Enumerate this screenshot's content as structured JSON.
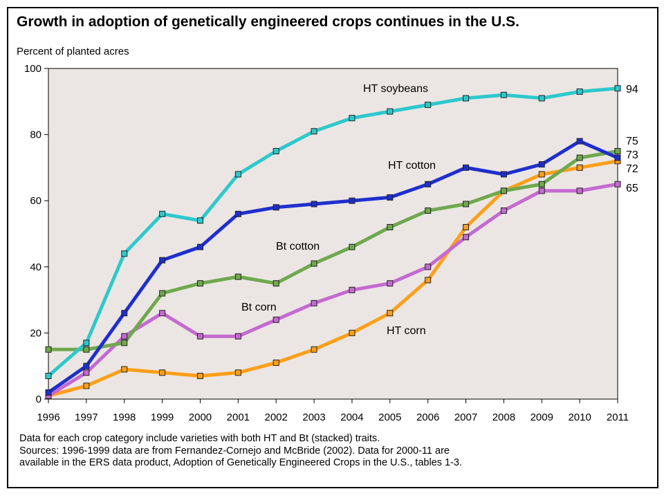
{
  "title": "Growth in adoption of genetically engineered crops continues in the U.S.",
  "notes": [
    "Data for each crop category include varieties with both HT and Bt (stacked) traits.",
    "Sources: 1996-1999 data are from Fernandez-Cornejo and McBride (2002). Data for 2000-11 are",
    "available in the ERS data product, Adoption of Genetically Engineered Crops in the U.S., tables 1-3."
  ],
  "chart_data": {
    "type": "line",
    "title": "Growth in adoption of genetically engineered crops continues in the U.S.",
    "ylabel": "Percent of planted acres",
    "xlabel": "",
    "x": [
      "1996",
      "1997",
      "1998",
      "1999",
      "2000",
      "2001",
      "2002",
      "2003",
      "2004",
      "2005",
      "2006",
      "2007",
      "2008",
      "2009",
      "2010",
      "2011"
    ],
    "ylim": [
      0,
      100
    ],
    "yticks": [
      0,
      20,
      40,
      60,
      80,
      100
    ],
    "grid": false,
    "background": "#ebe6e3",
    "series": [
      {
        "name": "HT soybeans",
        "color": "#2ec8cc",
        "values": [
          7,
          17,
          44,
          56,
          54,
          68,
          75,
          81,
          85,
          87,
          89,
          91,
          92,
          91,
          93,
          94
        ],
        "end_label": "94"
      },
      {
        "name": "HT cotton",
        "color": "#1f2fcc",
        "values": [
          2,
          10,
          26,
          42,
          46,
          56,
          58,
          59,
          60,
          61,
          65,
          70,
          68,
          71,
          78,
          73
        ],
        "end_label": "73"
      },
      {
        "name": "Bt cotton",
        "color": "#6fa84f",
        "values": [
          15,
          15,
          17,
          32,
          35,
          37,
          35,
          41,
          46,
          52,
          57,
          59,
          63,
          65,
          73,
          75
        ],
        "end_label": "75"
      },
      {
        "name": "Bt corn",
        "color": "#c46ad0",
        "values": [
          1,
          8,
          19,
          26,
          19,
          19,
          24,
          29,
          33,
          35,
          40,
          49,
          57,
          63,
          63,
          65
        ],
        "end_label": "65"
      },
      {
        "name": "HT corn",
        "color": "#ff9f1a",
        "values": [
          1,
          4,
          9,
          8,
          7,
          8,
          11,
          15,
          20,
          26,
          36,
          52,
          63,
          68,
          70,
          72
        ],
        "end_label": "72"
      }
    ]
  }
}
